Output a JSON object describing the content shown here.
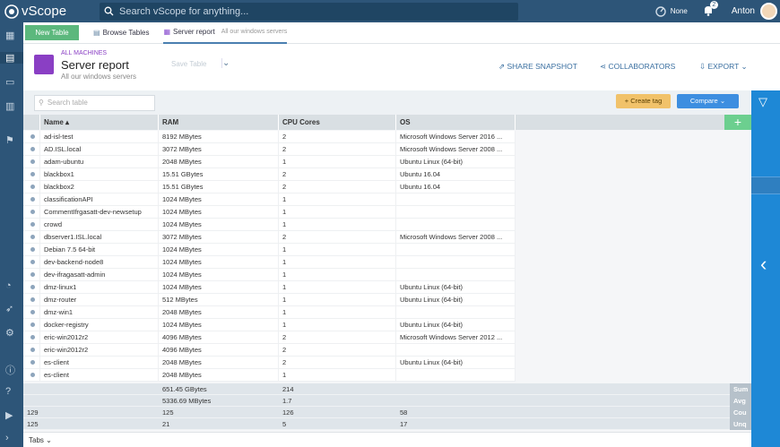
{
  "app": {
    "name": "vScope"
  },
  "search": {
    "placeholder": "Search vScope for anything..."
  },
  "topbar": {
    "mode_label": "None",
    "notifications": "2",
    "user": "Anton"
  },
  "tabs": {
    "new_table": "New Table",
    "browse": "Browse Tables",
    "active": "Server report",
    "active_sub": "All our windows servers"
  },
  "header": {
    "category": "ALL MACHINES",
    "title": "Server report",
    "subtitle": "All our windows servers",
    "save": "Save Table",
    "share": "SHARE SNAPSHOT",
    "collab": "COLLABORATORS",
    "export": "EXPORT"
  },
  "toolbar": {
    "search_placeholder": "Search table",
    "create_tag": "+ Create tag",
    "compare": "Compare"
  },
  "columns": [
    "Name",
    "RAM",
    "CPU Cores",
    "OS"
  ],
  "rows": [
    [
      "ad-isl-test",
      "8192 MBytes",
      "2",
      "Microsoft Windows Server 2016 ..."
    ],
    [
      "AD.ISL.local",
      "3072 MBytes",
      "2",
      "Microsoft Windows Server 2008 ..."
    ],
    [
      "adam-ubuntu",
      "2048 MBytes",
      "1",
      "Ubuntu Linux (64-bit)"
    ],
    [
      "blackbox1",
      "15.51 GBytes",
      "2",
      "Ubuntu 16.04"
    ],
    [
      "blackbox2",
      "15.51 GBytes",
      "2",
      "Ubuntu 16.04"
    ],
    [
      "classificationAPI",
      "1024 MBytes",
      "1",
      ""
    ],
    [
      "CommentIfrgasatt-dev-newsetup",
      "1024 MBytes",
      "1",
      ""
    ],
    [
      "crowd",
      "1024 MBytes",
      "1",
      ""
    ],
    [
      "dbserver1.ISL.local",
      "3072 MBytes",
      "2",
      "Microsoft Windows Server 2008 ..."
    ],
    [
      "Debian 7.5 64-bit",
      "1024 MBytes",
      "1",
      ""
    ],
    [
      "dev-backend-node8",
      "1024 MBytes",
      "1",
      ""
    ],
    [
      "dev-ifragasatt-admin",
      "1024 MBytes",
      "1",
      ""
    ],
    [
      "dmz-linux1",
      "1024 MBytes",
      "1",
      "Ubuntu Linux (64-bit)"
    ],
    [
      "dmz-router",
      "512 MBytes",
      "1",
      "Ubuntu Linux (64-bit)"
    ],
    [
      "dmz-win1",
      "2048 MBytes",
      "1",
      ""
    ],
    [
      "docker-registry",
      "1024 MBytes",
      "1",
      "Ubuntu Linux (64-bit)"
    ],
    [
      "eric-win2012r2",
      "4096 MBytes",
      "2",
      "Microsoft Windows Server 2012 ..."
    ],
    [
      "eric-win2012r2",
      "4096 MBytes",
      "2",
      ""
    ],
    [
      "es-client",
      "2048 MBytes",
      "2",
      "Ubuntu Linux (64-bit)"
    ],
    [
      "es-client",
      "2048 MBytes",
      "1",
      ""
    ]
  ],
  "footer": [
    {
      "label": "Sum",
      "name": "",
      "ram": "651.45 GBytes",
      "cpu": "214",
      "os": ""
    },
    {
      "label": "Avg",
      "name": "",
      "ram": "5336.69 MBytes",
      "cpu": "1.7",
      "os": ""
    },
    {
      "label": "Cou",
      "name": "129",
      "ram": "125",
      "cpu": "126",
      "os": "58"
    },
    {
      "label": "Unq",
      "name": "125",
      "ram": "21",
      "cpu": "5",
      "os": "17"
    }
  ],
  "bottom": {
    "tabs_label": "Tabs"
  }
}
